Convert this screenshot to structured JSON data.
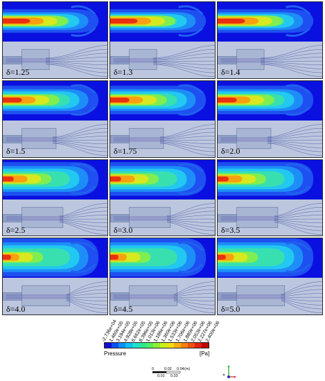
{
  "panels": [
    {
      "label": "δ=1.25"
    },
    {
      "label": "δ=1.3"
    },
    {
      "label": "δ=1.4"
    },
    {
      "label": "δ=1.5"
    },
    {
      "label": "δ=1.75"
    },
    {
      "label": "δ=2.0"
    },
    {
      "label": "δ=2.5"
    },
    {
      "label": "δ=3.0"
    },
    {
      "label": "δ=3.5"
    },
    {
      "label": "δ=4.0"
    },
    {
      "label": "δ=4.5"
    },
    {
      "label": "δ=5.0"
    }
  ],
  "legend": {
    "title": "Pressure",
    "unit": "[Pa]",
    "ticks": [
      "-2.736e+04",
      "1.460e+05",
      "3.194e+05",
      "4.928e+05",
      "6.662e+05",
      "8.396e+05",
      "1.013e+06",
      "1.186e+06",
      "1.360e+06",
      "1.533e+06",
      "1.706e+06",
      "1.880e+06",
      "2.053e+06",
      "2.227e+06",
      "2.400e+06"
    ],
    "colors": [
      "#1010d8",
      "#0b50f0",
      "#0a90f8",
      "#10c0f0",
      "#20e0d0",
      "#30e890",
      "#50f060",
      "#90f030",
      "#c8f020",
      "#f0e010",
      "#f8b010",
      "#f88010",
      "#f05010",
      "#e02010",
      "#c00808"
    ]
  },
  "scale": {
    "top_labels": [
      "0",
      "0.02",
      "0.04",
      "(m)"
    ],
    "bottom_labels": [
      "0.01",
      "0.03"
    ]
  },
  "colors": {
    "background_contour": "#0a10e0",
    "stream_bg": "#bcc6de",
    "pipe_fill": "#a9b6d3"
  }
}
